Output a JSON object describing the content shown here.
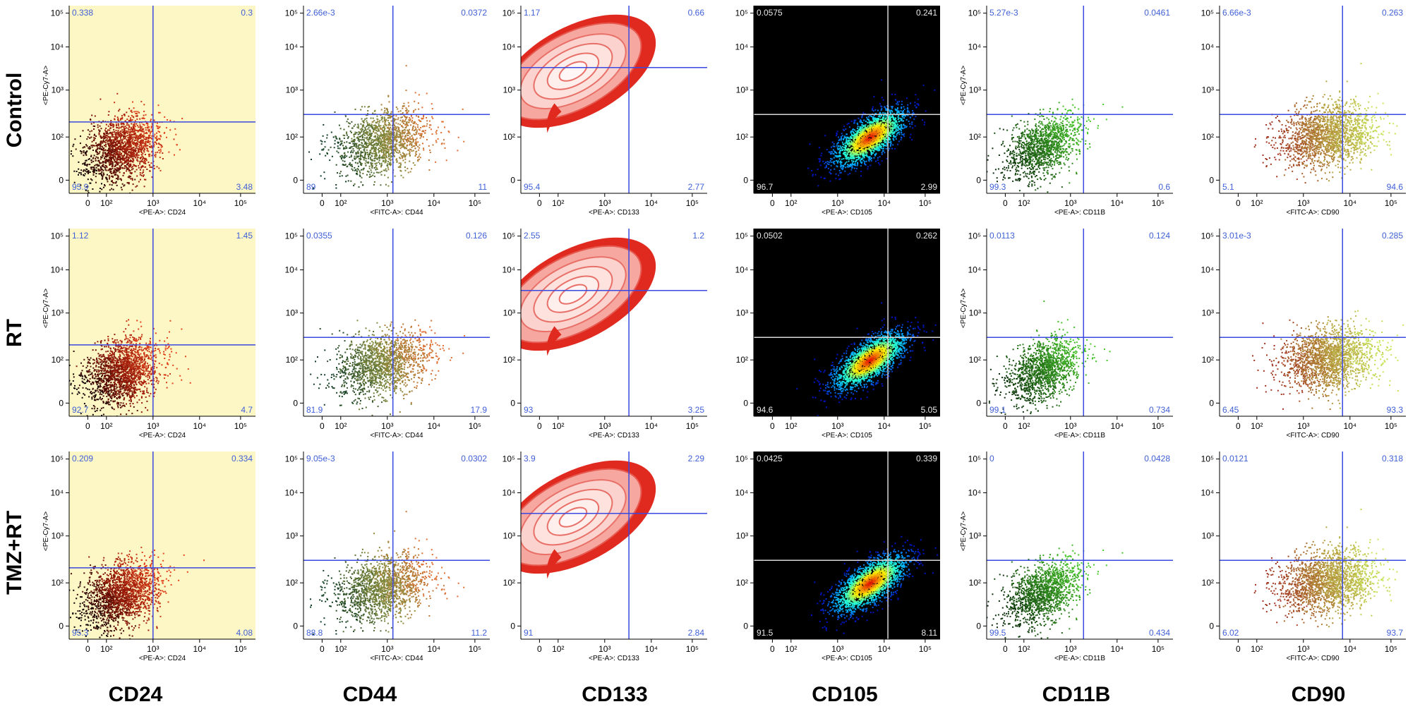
{
  "rows": [
    "Control",
    "RT",
    "TMZ+RT"
  ],
  "columns": [
    "CD24",
    "CD44",
    "CD133",
    "CD105",
    "CD11B",
    "CD90"
  ],
  "y_axis_label": "<PE-Cy7-A>",
  "x_axis_labels": [
    "<PE-A>: CD24",
    "<FITC-A>: CD44",
    "<PE-A>: CD133",
    "<PE-A>: CD105",
    "<PE-A>: CD11B",
    "<FITC-A>: CD90"
  ],
  "y_ticks": [
    "0",
    "10²",
    "10³",
    "10⁴",
    "10⁵"
  ],
  "x_ticks": [
    "0",
    "10²",
    "10³",
    "10⁴",
    "10⁵"
  ],
  "colors": {
    "quadrant_line": "#3a49e0",
    "quadrant_line_dark": "#d8d8d8",
    "quadrant_text": "#4060d8",
    "quadrant_text_dark": "#e8e8e8",
    "cd24_background": "#fdf7c6",
    "cd105_background": "#000000"
  },
  "chart_data": [
    {
      "type": "scatter",
      "row": "Control",
      "column": "CD24",
      "xlabel": "<PE-A>: CD24",
      "ylabel": "<PE-Cy7-A>",
      "quadrants": {
        "upper_left": "0.338",
        "upper_right": "0.3",
        "lower_left": "95.9",
        "lower_right": "3.48"
      }
    },
    {
      "type": "scatter",
      "row": "Control",
      "column": "CD44",
      "xlabel": "<FITC-A>: CD44",
      "ylabel": "",
      "quadrants": {
        "upper_left": "2.66e-3",
        "upper_right": "0.0372",
        "lower_left": "89",
        "lower_right": "11"
      }
    },
    {
      "type": "contour",
      "row": "Control",
      "column": "CD133",
      "xlabel": "<PE-A>: CD133",
      "ylabel": "",
      "quadrants": {
        "upper_left": "1.17",
        "upper_right": "0.66",
        "lower_left": "95.4",
        "lower_right": "2.77"
      }
    },
    {
      "type": "density",
      "row": "Control",
      "column": "CD105",
      "xlabel": "<PE-A>: CD105",
      "ylabel": "",
      "quadrants": {
        "upper_left": "0.0575",
        "upper_right": "0.241",
        "lower_left": "96.7",
        "lower_right": "2.99"
      }
    },
    {
      "type": "scatter",
      "row": "Control",
      "column": "CD11B",
      "xlabel": "<PE-A>: CD11B",
      "ylabel": "<PE-Cy7-A>",
      "quadrants": {
        "upper_left": "5.27e-3",
        "upper_right": "0.0461",
        "lower_left": "99.3",
        "lower_right": "0.6"
      }
    },
    {
      "type": "scatter",
      "row": "Control",
      "column": "CD90",
      "xlabel": "<FITC-A>: CD90",
      "ylabel": "",
      "quadrants": {
        "upper_left": "6.66e-3",
        "upper_right": "0.263",
        "lower_left": "5.1",
        "lower_right": "94.6"
      }
    },
    {
      "type": "scatter",
      "row": "RT",
      "column": "CD24",
      "xlabel": "<PE-A>: CD24",
      "ylabel": "<PE-Cy7-A>",
      "quadrants": {
        "upper_left": "1.12",
        "upper_right": "1.45",
        "lower_left": "92.7",
        "lower_right": "4.7"
      }
    },
    {
      "type": "scatter",
      "row": "RT",
      "column": "CD44",
      "xlabel": "<FITC-A>: CD44",
      "ylabel": "",
      "quadrants": {
        "upper_left": "0.0355",
        "upper_right": "0.126",
        "lower_left": "81.9",
        "lower_right": "17.9"
      }
    },
    {
      "type": "contour",
      "row": "RT",
      "column": "CD133",
      "xlabel": "<PE-A>: CD133",
      "ylabel": "",
      "quadrants": {
        "upper_left": "2.55",
        "upper_right": "1.2",
        "lower_left": "93",
        "lower_right": "3.25"
      }
    },
    {
      "type": "density",
      "row": "RT",
      "column": "CD105",
      "xlabel": "<PE-A>: CD105",
      "ylabel": "",
      "quadrants": {
        "upper_left": "0.0502",
        "upper_right": "0.262",
        "lower_left": "94.6",
        "lower_right": "5.05"
      }
    },
    {
      "type": "scatter",
      "row": "RT",
      "column": "CD11B",
      "xlabel": "<PE-A>: CD11B",
      "ylabel": "<PE-Cy7-A>",
      "quadrants": {
        "upper_left": "0.0113",
        "upper_right": "0.124",
        "lower_left": "99.1",
        "lower_right": "0.734"
      }
    },
    {
      "type": "scatter",
      "row": "RT",
      "column": "CD90",
      "xlabel": "<FITC-A>: CD90",
      "ylabel": "",
      "quadrants": {
        "upper_left": "3.01e-3",
        "upper_right": "0.285",
        "lower_left": "6.45",
        "lower_right": "93.3"
      }
    },
    {
      "type": "scatter",
      "row": "TMZ+RT",
      "column": "CD24",
      "xlabel": "<PE-A>: CD24",
      "ylabel": "<PE-Cy7-A>",
      "quadrants": {
        "upper_left": "0.209",
        "upper_right": "0.334",
        "lower_left": "95.3",
        "lower_right": "4.08"
      }
    },
    {
      "type": "scatter",
      "row": "TMZ+RT",
      "column": "CD44",
      "xlabel": "<FITC-A>: CD44",
      "ylabel": "",
      "quadrants": {
        "upper_left": "9.05e-3",
        "upper_right": "0.0302",
        "lower_left": "88.8",
        "lower_right": "11.2"
      }
    },
    {
      "type": "contour",
      "row": "TMZ+RT",
      "column": "CD133",
      "xlabel": "<PE-A>: CD133",
      "ylabel": "",
      "quadrants": {
        "upper_left": "3.9",
        "upper_right": "2.29",
        "lower_left": "91",
        "lower_right": "2.84"
      }
    },
    {
      "type": "density",
      "row": "TMZ+RT",
      "column": "CD105",
      "xlabel": "<PE-A>: CD105",
      "ylabel": "",
      "quadrants": {
        "upper_left": "0.0425",
        "upper_right": "0.339",
        "lower_left": "91.5",
        "lower_right": "8.11"
      }
    },
    {
      "type": "scatter",
      "row": "TMZ+RT",
      "column": "CD11B",
      "xlabel": "<PE-A>: CD11B",
      "ylabel": "<PE-Cy7-A>",
      "quadrants": {
        "upper_left": "0",
        "upper_right": "0.0428",
        "lower_left": "99.5",
        "lower_right": "0.434"
      }
    },
    {
      "type": "scatter",
      "row": "TMZ+RT",
      "column": "CD90",
      "xlabel": "<FITC-A>: CD90",
      "ylabel": "",
      "quadrants": {
        "upper_left": "0.0121",
        "upper_right": "0.318",
        "lower_left": "6.02",
        "lower_right": "93.7"
      }
    }
  ]
}
